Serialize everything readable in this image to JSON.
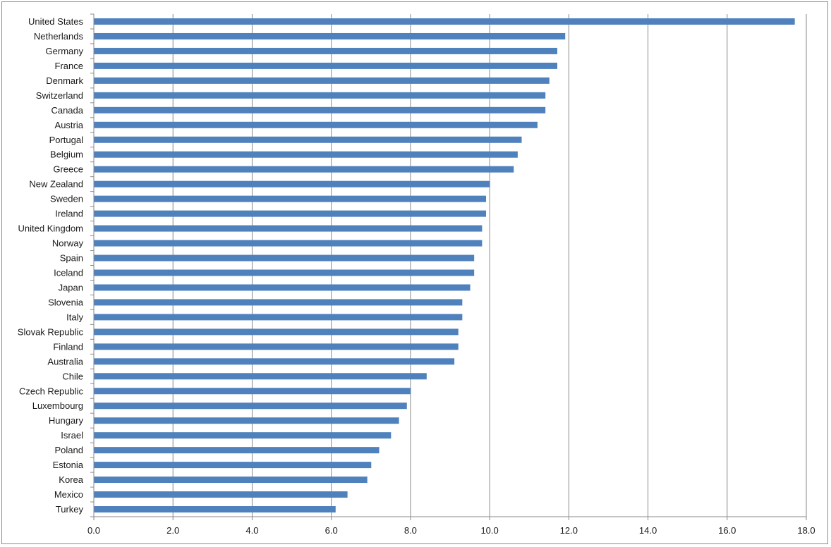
{
  "chart_data": {
    "type": "bar",
    "orientation": "horizontal",
    "title": "",
    "xlabel": "",
    "ylabel": "",
    "xlim": [
      0,
      18
    ],
    "tick_values": [
      0,
      2,
      4,
      6,
      8,
      10,
      12,
      14,
      16,
      18
    ],
    "tick_labels": [
      "0.0",
      "2.0",
      "4.0",
      "6.0",
      "8.0",
      "10.0",
      "12.0",
      "14.0",
      "16.0",
      "18.0"
    ],
    "grid": true,
    "legend": "none",
    "bar_color": "#4f81bd",
    "categories": [
      "United States",
      "Netherlands",
      "Germany",
      "France",
      "Denmark",
      "Switzerland",
      "Canada",
      "Austria",
      "Portugal",
      "Belgium",
      "Greece",
      "New Zealand",
      "Sweden",
      "Ireland",
      "United Kingdom",
      "Norway",
      "Spain",
      "Iceland",
      "Japan",
      "Slovenia",
      "Italy",
      "Slovak Republic",
      "Finland",
      "Australia",
      "Chile",
      "Czech Republic",
      "Luxembourg",
      "Hungary",
      "Israel",
      "Poland",
      "Estonia",
      "Korea",
      "Mexico",
      "Turkey"
    ],
    "values": [
      17.7,
      11.9,
      11.7,
      11.7,
      11.5,
      11.4,
      11.4,
      11.2,
      10.8,
      10.7,
      10.6,
      10.0,
      9.9,
      9.9,
      9.8,
      9.8,
      9.6,
      9.6,
      9.5,
      9.3,
      9.3,
      9.2,
      9.2,
      9.1,
      8.4,
      8.0,
      7.9,
      7.7,
      7.5,
      7.2,
      7.0,
      6.9,
      6.4,
      6.1
    ]
  }
}
